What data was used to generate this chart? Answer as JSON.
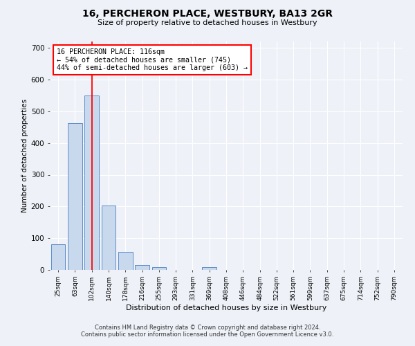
{
  "title": "16, PERCHERON PLACE, WESTBURY, BA13 2GR",
  "subtitle": "Size of property relative to detached houses in Westbury",
  "xlabel": "Distribution of detached houses by size in Westbury",
  "ylabel": "Number of detached properties",
  "bar_labels": [
    "25sqm",
    "63sqm",
    "102sqm",
    "140sqm",
    "178sqm",
    "216sqm",
    "255sqm",
    "293sqm",
    "331sqm",
    "369sqm",
    "408sqm",
    "446sqm",
    "484sqm",
    "522sqm",
    "561sqm",
    "599sqm",
    "637sqm",
    "675sqm",
    "714sqm",
    "752sqm",
    "790sqm"
  ],
  "bar_values": [
    80,
    462,
    550,
    203,
    56,
    15,
    8,
    0,
    0,
    8,
    0,
    0,
    0,
    0,
    0,
    0,
    0,
    0,
    0,
    0,
    0
  ],
  "bar_color": "#c9d9ed",
  "bar_edgecolor": "#5b8cc8",
  "vline_x": 2.0,
  "vline_color": "red",
  "annotation_text": "16 PERCHERON PLACE: 116sqm\n← 54% of detached houses are smaller (745)\n44% of semi-detached houses are larger (603) →",
  "annotation_box_color": "white",
  "annotation_box_edgecolor": "red",
  "ylim": [
    0,
    720
  ],
  "yticks": [
    0,
    100,
    200,
    300,
    400,
    500,
    600,
    700
  ],
  "footer1": "Contains HM Land Registry data © Crown copyright and database right 2024.",
  "footer2": "Contains public sector information licensed under the Open Government Licence v3.0.",
  "bg_color": "#eef2f8",
  "plot_bg_color": "#eef2f8",
  "grid_color": "white"
}
